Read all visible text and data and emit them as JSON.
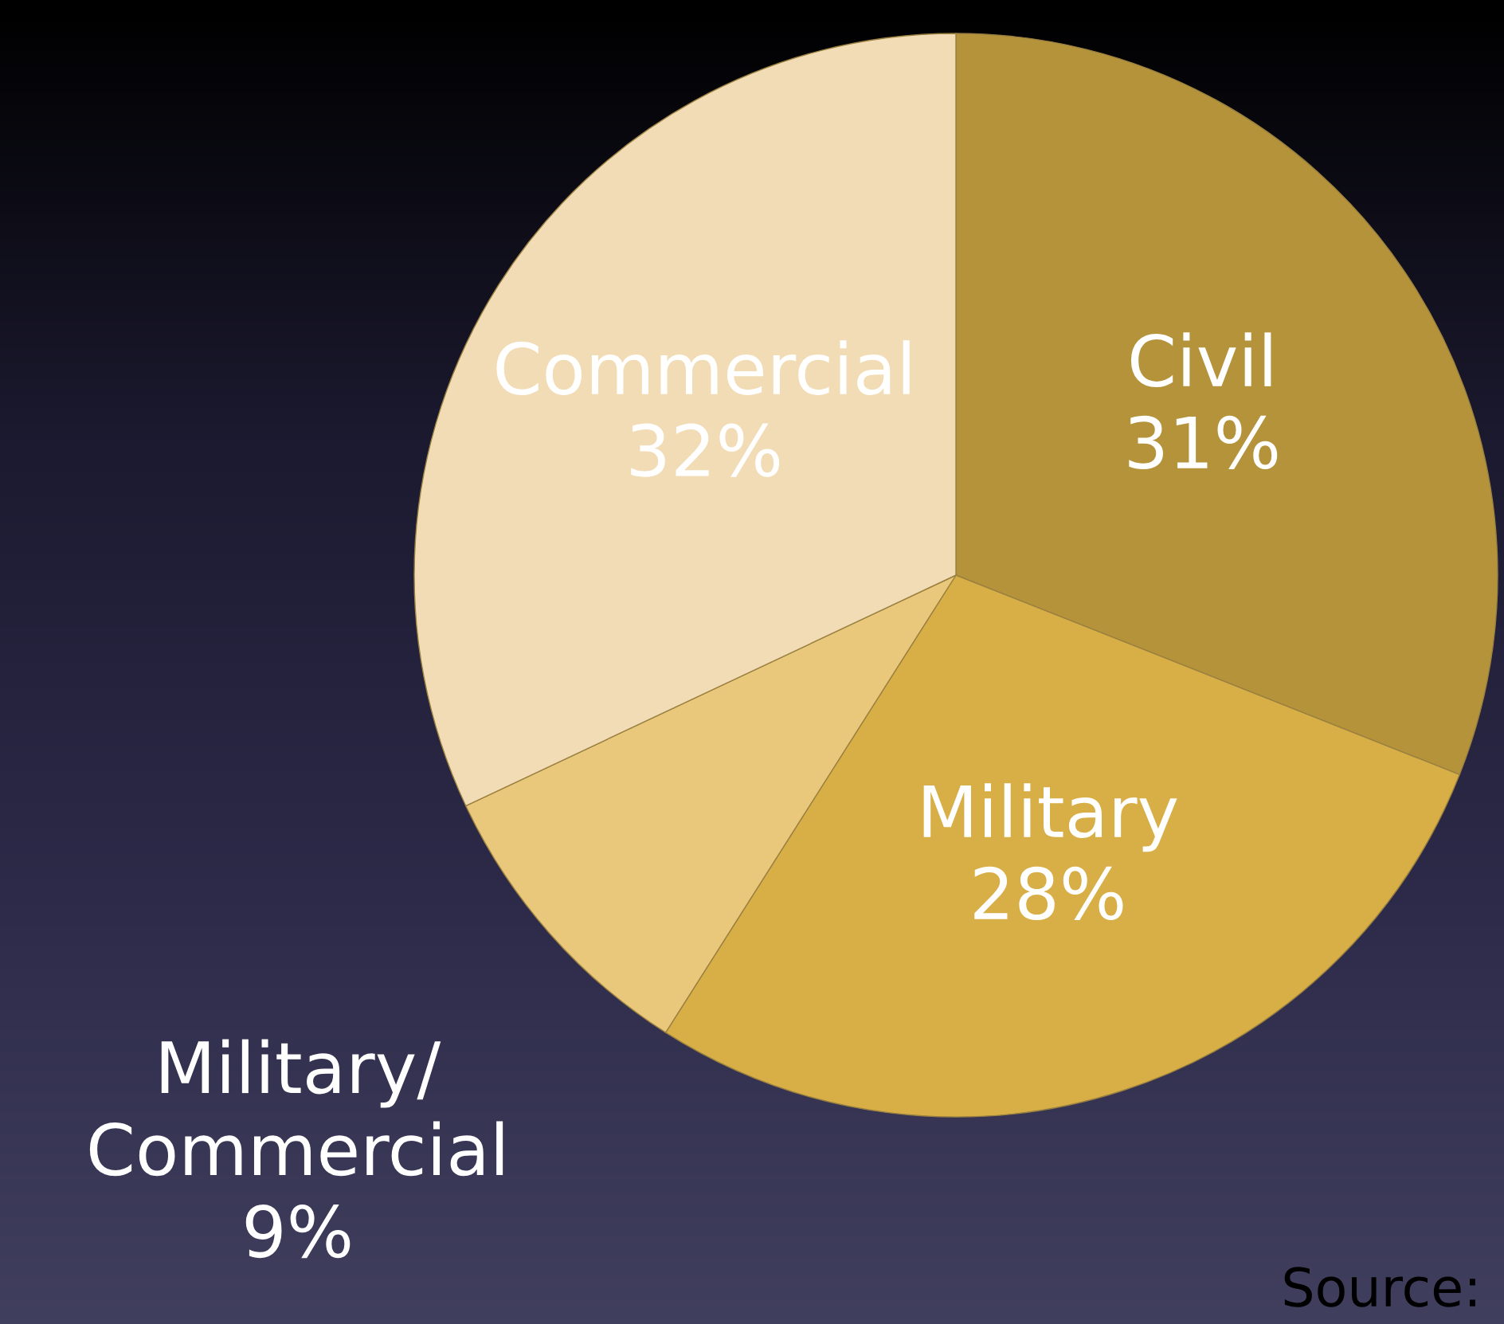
{
  "chart_data": {
    "type": "pie",
    "categories": [
      "Civil",
      "Military",
      "Military/\nCommercial",
      "Commercial"
    ],
    "values": [
      31,
      28,
      9,
      32
    ],
    "colors": [
      "#b5933b",
      "#d8af46",
      "#e9c77b",
      "#f2dcb5"
    ],
    "value_labels": [
      "31%",
      "28%",
      "9%",
      "32%"
    ],
    "annotations": [
      "Source:"
    ]
  }
}
